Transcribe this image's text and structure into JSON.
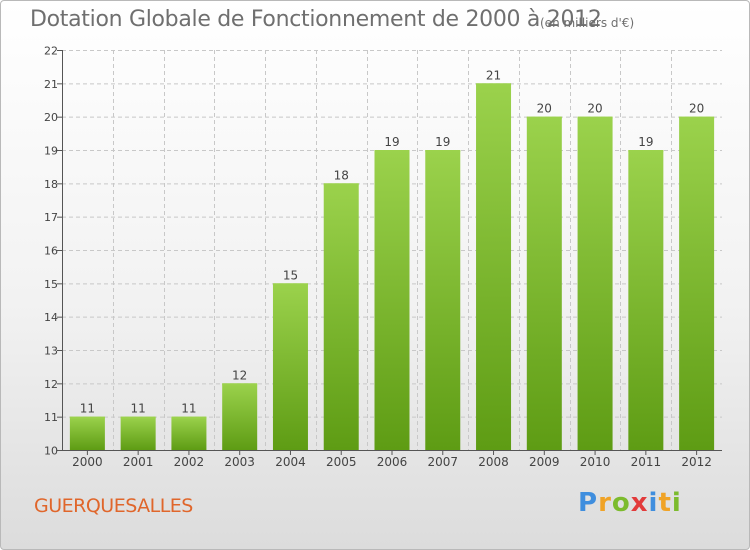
{
  "header": {
    "title": "Dotation Globale de Fonctionnement de 2000 à 2012",
    "unit": "(en milliers d'€)"
  },
  "footer": {
    "commune": "GUERQUESALLES",
    "logo": [
      "P",
      "r",
      "o",
      "x",
      "i",
      "t",
      "i"
    ]
  },
  "colors": {
    "bar_top": "#9bd24c",
    "bar_bottom": "#5e9c14",
    "grid": "#c8c8c8",
    "axis": "#555555",
    "text": "#444444",
    "title": "#6f6f6f",
    "commune": "#e0662b"
  },
  "chart_data": {
    "type": "bar",
    "title": "Dotation Globale de Fonctionnement de 2000 à 2012",
    "ylabel": "(en milliers d'€)",
    "xlabel": "",
    "categories": [
      "2000",
      "2001",
      "2002",
      "2003",
      "2004",
      "2005",
      "2006",
      "2007",
      "2008",
      "2009",
      "2010",
      "2011",
      "2012"
    ],
    "values": [
      11,
      11,
      11,
      12,
      15,
      18,
      19,
      19,
      21,
      20,
      20,
      19,
      20
    ],
    "ylim": [
      10,
      22
    ],
    "yticks": [
      10,
      11,
      12,
      13,
      14,
      15,
      16,
      17,
      18,
      19,
      20,
      21,
      22
    ],
    "grid": true,
    "data_labels": true
  }
}
